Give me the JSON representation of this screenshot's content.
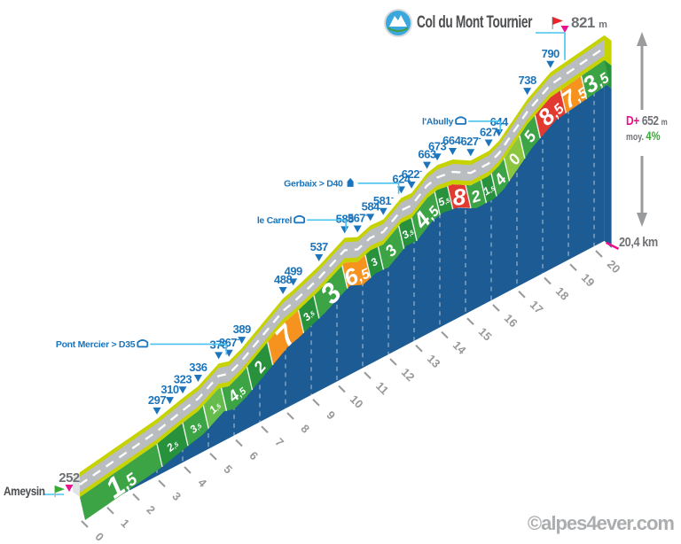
{
  "header": {
    "title": "Col du Mont Tournier",
    "summit_elevation": "821",
    "summit_unit": "m"
  },
  "start": {
    "name": "Ameysin",
    "elevation": "252"
  },
  "stats": {
    "dplus_prefix": "D+",
    "dplus_value": "652",
    "dplus_unit": "m",
    "avg_prefix": "moy.",
    "avg_value": "4%",
    "total_distance": "20,4 km"
  },
  "watermark": "©alpes4ever.com",
  "colors": {
    "face_blue": "#1c5b94",
    "road_gray": "#b9bdc0",
    "edge_yellow": "#c6d300",
    "marker_blue": "#1c75bb",
    "cyan": "#49c3ef",
    "pink": "#ec108c",
    "red_flag": "#e8252d",
    "green_flag": "#3aaa35",
    "title_gray": "#4c4e50",
    "value_gray": "#6f7174",
    "tick_gray": "#97999b",
    "seg_green": "#3ca445",
    "seg_green_dark": "#27913c",
    "seg_green_light": "#66bb4d",
    "seg_green_lightest": "#8cc63f",
    "seg_orange": "#f6921e",
    "seg_red": "#e23a30",
    "road_cap": "#e0e3e4"
  },
  "chart_data": {
    "type": "area",
    "title": "Col du Mont Tournier",
    "xlabel": "km",
    "ylabel": "m",
    "total_km": 20.4,
    "start_elevation": 252,
    "summit_elevation": 821,
    "elevation_gain_m": 652,
    "average_gradient": "4%",
    "ylim": [
      252,
      821
    ],
    "x_ticks": [
      "0",
      "1",
      "2",
      "3",
      "4",
      "5",
      "6",
      "7",
      "8",
      "9",
      "10",
      "11",
      "12",
      "13",
      "14",
      "15",
      "16",
      "17",
      "18",
      "19",
      "20"
    ],
    "profile_points": [
      [
        0,
        252
      ],
      [
        3,
        297
      ],
      [
        3.5,
        310
      ],
      [
        4,
        323
      ],
      [
        4.6,
        336
      ],
      [
        5.4,
        378
      ],
      [
        5.8,
        367
      ],
      [
        6.3,
        389
      ],
      [
        7.9,
        488
      ],
      [
        8.3,
        499
      ],
      [
        9.3,
        537
      ],
      [
        10.3,
        588
      ],
      [
        10.8,
        567
      ],
      [
        11.3,
        584
      ],
      [
        11.8,
        581
      ],
      [
        12.5,
        624
      ],
      [
        12.9,
        622
      ],
      [
        13.5,
        663
      ],
      [
        13.9,
        673
      ],
      [
        14.5,
        664
      ],
      [
        15.2,
        627
      ],
      [
        15.9,
        627
      ],
      [
        16.3,
        644
      ],
      [
        17.4,
        738
      ],
      [
        18.3,
        790
      ],
      [
        20.4,
        821
      ]
    ],
    "elevation_markers": [
      {
        "km": 3.0,
        "label": "297",
        "dash": false
      },
      {
        "km": 3.5,
        "label": "310",
        "dash": false
      },
      {
        "km": 4.0,
        "label": "323",
        "dash": false
      },
      {
        "km": 4.6,
        "label": "336",
        "dash": false
      },
      {
        "km": 5.4,
        "label": "378",
        "dash": false
      },
      {
        "km": 5.8,
        "label": "367",
        "dash": true
      },
      {
        "km": 6.3,
        "label": "389",
        "dash": false
      },
      {
        "km": 7.9,
        "label": "488",
        "dash": false
      },
      {
        "km": 8.3,
        "label": "499",
        "dash": false
      },
      {
        "km": 9.3,
        "label": "537",
        "dash": false
      },
      {
        "km": 10.3,
        "label": "588",
        "dash": false
      },
      {
        "km": 10.8,
        "label": "567",
        "dash": true
      },
      {
        "km": 11.3,
        "label": "584",
        "dash": false
      },
      {
        "km": 11.8,
        "label": "581",
        "dash": true
      },
      {
        "km": 12.5,
        "label": "624",
        "dash": false
      },
      {
        "km": 12.9,
        "label": "622",
        "dash": true
      },
      {
        "km": 13.5,
        "label": "663",
        "dash": false
      },
      {
        "km": 13.9,
        "label": "673",
        "dash": false
      },
      {
        "km": 14.5,
        "label": "664",
        "dash": true
      },
      {
        "km": 15.2,
        "label": "627",
        "dash": true
      },
      {
        "km": 15.9,
        "label": "627",
        "dash": false
      },
      {
        "km": 16.3,
        "label": "644",
        "dash": false
      },
      {
        "km": 17.4,
        "label": "738",
        "dash": false
      },
      {
        "km": 18.3,
        "label": "790",
        "dash": false
      }
    ],
    "segments": [
      {
        "from": 0.0,
        "to": 3.0,
        "label": "1,5",
        "size": "xl",
        "color": "seg_green"
      },
      {
        "from": 3.0,
        "to": 4.0,
        "label": "2,5",
        "size": "s",
        "color": "seg_green_dark"
      },
      {
        "from": 4.0,
        "to": 4.8,
        "label": "3,5",
        "size": "s",
        "color": "seg_green"
      },
      {
        "from": 4.8,
        "to": 5.5,
        "label": "1,5",
        "size": "s",
        "color": "seg_green_light"
      },
      {
        "from": 5.5,
        "to": 6.5,
        "label": "4,5",
        "size": "m",
        "color": "seg_green"
      },
      {
        "from": 6.5,
        "to": 7.3,
        "label": "2",
        "size": "m",
        "color": "seg_green_dark"
      },
      {
        "from": 7.3,
        "to": 8.5,
        "label": "7",
        "size": "xl",
        "color": "seg_orange"
      },
      {
        "from": 8.5,
        "to": 9.1,
        "label": "3,5",
        "size": "s",
        "color": "seg_green_dark"
      },
      {
        "from": 9.1,
        "to": 10.2,
        "label": "3",
        "size": "xl",
        "color": "seg_green"
      },
      {
        "from": 10.2,
        "to": 11.1,
        "label": "6,5",
        "size": "l",
        "color": "seg_orange"
      },
      {
        "from": 11.1,
        "to": 11.6,
        "label": "3",
        "size": "s",
        "color": "seg_green_dark"
      },
      {
        "from": 11.6,
        "to": 12.4,
        "label": "3",
        "size": "m",
        "color": "seg_green"
      },
      {
        "from": 12.4,
        "to": 12.9,
        "label": "3,5",
        "size": "s",
        "color": "seg_green_dark"
      },
      {
        "from": 12.9,
        "to": 13.8,
        "label": "4,5",
        "size": "l",
        "color": "seg_green"
      },
      {
        "from": 13.8,
        "to": 14.3,
        "label": "5,5",
        "size": "s",
        "color": "seg_green_dark"
      },
      {
        "from": 14.3,
        "to": 15.0,
        "label": "8",
        "size": "l",
        "color": "seg_red"
      },
      {
        "from": 15.0,
        "to": 15.6,
        "label": "2",
        "size": "m",
        "color": "seg_green"
      },
      {
        "from": 15.6,
        "to": 16.0,
        "label": "1,5",
        "size": "s",
        "color": "seg_green_dark"
      },
      {
        "from": 16.0,
        "to": 16.5,
        "label": "4",
        "size": "m",
        "color": "seg_green"
      },
      {
        "from": 16.5,
        "to": 17.1,
        "label": "0",
        "size": "m",
        "color": "seg_green_lightest"
      },
      {
        "from": 17.1,
        "to": 17.7,
        "label": "5",
        "size": "m",
        "color": "seg_green"
      },
      {
        "from": 17.7,
        "to": 18.7,
        "label": "8,5",
        "size": "l",
        "color": "seg_red"
      },
      {
        "from": 18.7,
        "to": 19.5,
        "label": "7,5",
        "size": "l",
        "color": "seg_orange"
      },
      {
        "from": 19.5,
        "to": 20.4,
        "label": "3,5",
        "size": "l",
        "color": "seg_green"
      }
    ],
    "landmarks": [
      {
        "km": 5.7,
        "label": "Pont Mercier > D35",
        "icon": "bridge",
        "line": 86
      },
      {
        "km": 10.35,
        "label": "le Carrel",
        "icon": "bridge",
        "line": 44
      },
      {
        "km": 12.4,
        "label": "Gerbaix > D40",
        "icon": "tower",
        "line": 46
      },
      {
        "km": 16.35,
        "label": "l'Abully",
        "icon": "bridge",
        "line": 36
      }
    ],
    "legend": "grid off, gradient band colored by steepness (green < 6%, orange 6-8%, red >= 8%)"
  }
}
